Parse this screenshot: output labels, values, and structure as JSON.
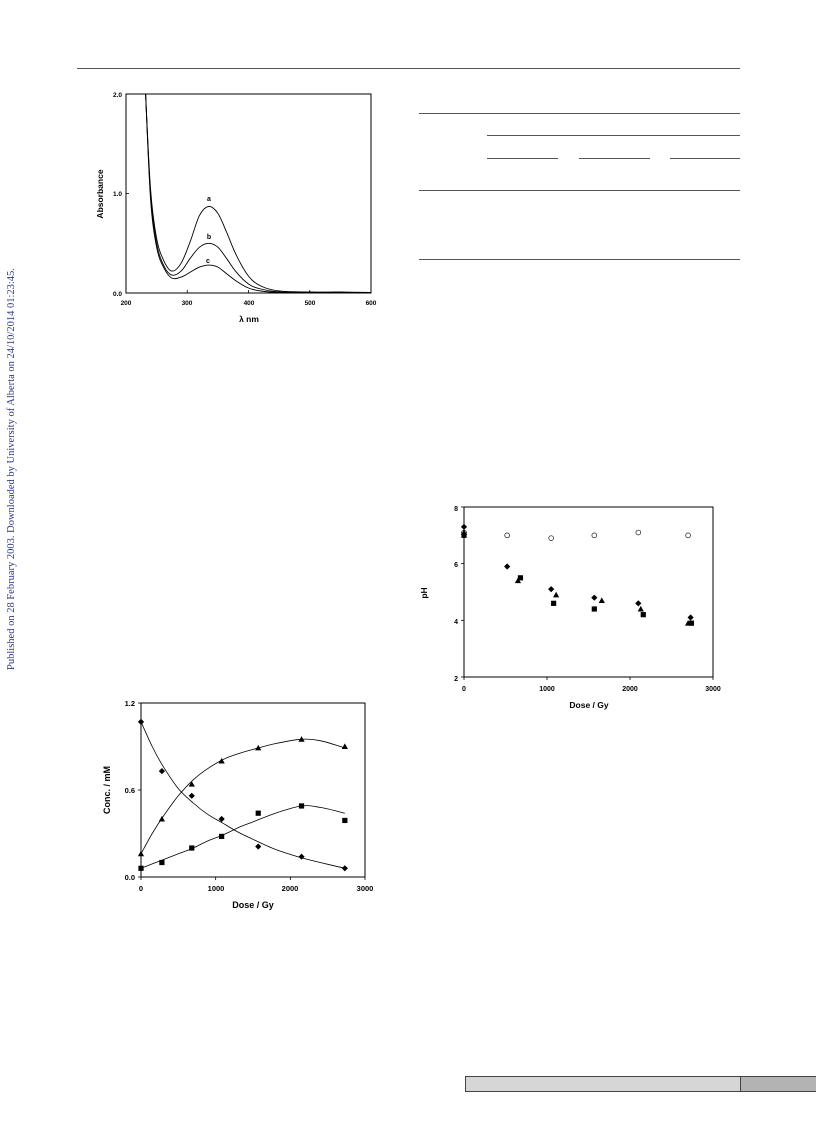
{
  "side_note": "Published on 28 February 2003. Downloaded by University of Alberta on 24/10/2014 01:23:45.",
  "figures": {
    "spectrum": {
      "ylabel": "Absorbance",
      "xlabel": "λ nm",
      "yticks": [
        "0.0",
        "1.0",
        "2.0"
      ],
      "xticks": [
        "200",
        "300",
        "400",
        "500",
        "600"
      ],
      "curve_labels": [
        "a",
        "b",
        "c"
      ]
    },
    "concentration": {
      "ylabel": "Conc. / mM",
      "xlabel": "Dose / Gy",
      "yticks": [
        "0.0",
        "0.6",
        "1.2"
      ],
      "xticks": [
        "0",
        "1000",
        "2000",
        "3000"
      ]
    },
    "ph": {
      "ylabel": "pH",
      "xlabel": "Dose / Gy",
      "yticks": [
        "2",
        "4",
        "6",
        "8"
      ],
      "xticks": [
        "0",
        "1000",
        "2000",
        "3000"
      ]
    }
  },
  "chart_data": [
    {
      "type": "line",
      "xlabel": "λ nm",
      "ylabel": "Absorbance",
      "xlim": [
        200,
        600
      ],
      "ylim": [
        0,
        2.0
      ],
      "series": [
        {
          "name": "a",
          "x": [
            232,
            240,
            250,
            262,
            275,
            290,
            305,
            320,
            335,
            350,
            365,
            380,
            400,
            420,
            450,
            500,
            550,
            600
          ],
          "y": [
            2.0,
            1.05,
            0.55,
            0.32,
            0.22,
            0.3,
            0.52,
            0.78,
            0.87,
            0.8,
            0.6,
            0.38,
            0.17,
            0.07,
            0.02,
            0.01,
            0.01,
            0.005
          ]
        },
        {
          "name": "b",
          "x": [
            232,
            240,
            250,
            262,
            275,
            290,
            305,
            320,
            335,
            350,
            365,
            380,
            400,
            420,
            450,
            500,
            550,
            600
          ],
          "y": [
            2.0,
            1.0,
            0.5,
            0.27,
            0.18,
            0.22,
            0.35,
            0.46,
            0.5,
            0.46,
            0.34,
            0.21,
            0.09,
            0.04,
            0.01,
            0.005,
            0.005,
            0.003
          ]
        },
        {
          "name": "c",
          "x": [
            232,
            240,
            250,
            262,
            275,
            290,
            305,
            320,
            335,
            350,
            365,
            380,
            400,
            420,
            450,
            500,
            550,
            600
          ],
          "y": [
            2.0,
            0.95,
            0.46,
            0.25,
            0.15,
            0.16,
            0.21,
            0.26,
            0.28,
            0.26,
            0.19,
            0.12,
            0.05,
            0.02,
            0.005,
            0.003,
            0.003,
            0.002
          ]
        }
      ]
    },
    {
      "type": "scatter",
      "xlabel": "Dose / Gy",
      "ylabel": "Conc. / mM",
      "xlim": [
        0,
        3000
      ],
      "ylim": [
        0,
        1.2
      ],
      "series": [
        {
          "marker": "diamond",
          "x": [
            0,
            280,
            680,
            1080,
            1570,
            2150,
            2730
          ],
          "y": [
            1.07,
            0.73,
            0.56,
            0.4,
            0.21,
            0.14,
            0.06
          ]
        },
        {
          "marker": "triangle",
          "x": [
            0,
            280,
            680,
            1080,
            1570,
            2150,
            2730
          ],
          "y": [
            0.16,
            0.4,
            0.64,
            0.8,
            0.89,
            0.95,
            0.9
          ]
        },
        {
          "marker": "square",
          "x": [
            0,
            280,
            680,
            1080,
            1570,
            2150,
            2730
          ],
          "y": [
            0.06,
            0.1,
            0.2,
            0.28,
            0.44,
            0.49,
            0.39
          ]
        }
      ],
      "fits": [
        {
          "x": [
            0,
            150,
            300,
            500,
            700,
            900,
            1100,
            1300,
            1500,
            1800,
            2100,
            2400,
            2730
          ],
          "y": [
            1.07,
            0.9,
            0.76,
            0.61,
            0.51,
            0.43,
            0.37,
            0.31,
            0.26,
            0.19,
            0.14,
            0.1,
            0.06
          ]
        },
        {
          "x": [
            0,
            150,
            300,
            500,
            700,
            900,
            1100,
            1300,
            1500,
            1800,
            2150,
            2400,
            2730
          ],
          "y": [
            0.16,
            0.3,
            0.42,
            0.56,
            0.67,
            0.75,
            0.81,
            0.85,
            0.88,
            0.92,
            0.95,
            0.94,
            0.89
          ]
        },
        {
          "x": [
            0,
            150,
            300,
            500,
            700,
            900,
            1100,
            1300,
            1500,
            1800,
            2150,
            2400,
            2730
          ],
          "y": [
            0.06,
            0.09,
            0.12,
            0.16,
            0.2,
            0.25,
            0.29,
            0.34,
            0.38,
            0.44,
            0.49,
            0.48,
            0.44
          ]
        }
      ]
    },
    {
      "type": "scatter",
      "xlabel": "Dose / Gy",
      "ylabel": "pH",
      "xlim": [
        0,
        3000
      ],
      "ylim": [
        2,
        8
      ],
      "series": [
        {
          "marker": "circle-open",
          "x": [
            0,
            520,
            1050,
            1570,
            2100,
            2700
          ],
          "y": [
            7.1,
            7.0,
            6.9,
            7.0,
            7.1,
            7.0
          ]
        },
        {
          "marker": "diamond",
          "x": [
            0,
            520,
            1050,
            1570,
            2100,
            2730
          ],
          "y": [
            7.3,
            5.9,
            5.1,
            4.8,
            4.6,
            4.1
          ]
        },
        {
          "marker": "triangle",
          "x": [
            0,
            650,
            1110,
            1660,
            2130,
            2700
          ],
          "y": [
            7.1,
            5.4,
            4.9,
            4.7,
            4.4,
            3.9
          ]
        },
        {
          "marker": "square",
          "x": [
            0,
            680,
            1080,
            1570,
            2160,
            2740
          ],
          "y": [
            7.0,
            5.5,
            4.6,
            4.4,
            4.2,
            3.9
          ]
        }
      ]
    }
  ]
}
